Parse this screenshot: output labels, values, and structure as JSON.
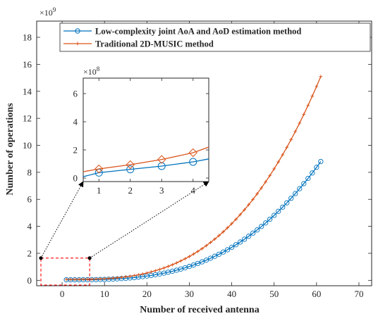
{
  "chart_data": [
    {
      "type": "line",
      "role": "main",
      "xlabel": "Number of received antenna",
      "ylabel": "Number of operations",
      "y_exponent_label": "×10",
      "y_exponent": "9",
      "xlim": [
        -6,
        73
      ],
      "ylim": [
        -0.4,
        19.2
      ],
      "xticks": [
        0,
        10,
        20,
        30,
        40,
        50,
        60,
        70
      ],
      "yticks": [
        0,
        2,
        4,
        6,
        8,
        10,
        12,
        14,
        16,
        18
      ],
      "grid": false,
      "legend_position": "top-right",
      "x_range": [
        1,
        61
      ],
      "series": [
        {
          "name": "Low-complexity joint AoA and AoD estimation method",
          "color": "#0072BD",
          "marker": "circle",
          "model": "cubic",
          "value_at_x_61": 8.8,
          "value_at_x_1": 0.04
        },
        {
          "name": "Traditional 2D-MUSIC method",
          "color": "#D95319",
          "marker": "plus",
          "model": "cubic",
          "value_at_x_61": 15.1,
          "value_at_x_1": 0.07
        }
      ],
      "annotations": [
        {
          "type": "dashed-rectangle",
          "color": "#ff0000",
          "x_range": [
            -5,
            6.5
          ],
          "y_range": [
            -0.35,
            1.65
          ]
        },
        {
          "type": "dotted-arrow",
          "from": [
            -5,
            1.65
          ],
          "to_inset": "top-left"
        },
        {
          "type": "dotted-arrow",
          "from": [
            6.5,
            1.65
          ],
          "to_inset": "top-right"
        }
      ]
    },
    {
      "type": "line",
      "role": "inset",
      "y_exponent_label": "×10",
      "y_exponent": "8",
      "xlim": [
        0.5,
        4.5
      ],
      "ylim": [
        -0.25,
        7.1
      ],
      "xticks": [
        1,
        2,
        3,
        4
      ],
      "yticks": [
        0,
        2,
        4,
        6
      ],
      "series": [
        {
          "name": "Low-complexity joint AoA and AoD estimation method",
          "color": "#0072BD",
          "marker": "circle",
          "x": [
            0.5,
            1,
            2,
            3,
            4,
            4.5
          ],
          "y": [
            0.1,
            0.38,
            0.62,
            0.85,
            1.15,
            1.36
          ],
          "marker_x": [
            1,
            2,
            3,
            4
          ]
        },
        {
          "name": "Traditional 2D-MUSIC method",
          "color": "#D95319",
          "marker": "diamond",
          "x": [
            0.5,
            1,
            2,
            3,
            4,
            4.5
          ],
          "y": [
            0.45,
            0.65,
            0.95,
            1.32,
            1.8,
            2.2
          ],
          "marker_x": [
            1,
            2,
            3,
            4
          ]
        }
      ]
    }
  ]
}
